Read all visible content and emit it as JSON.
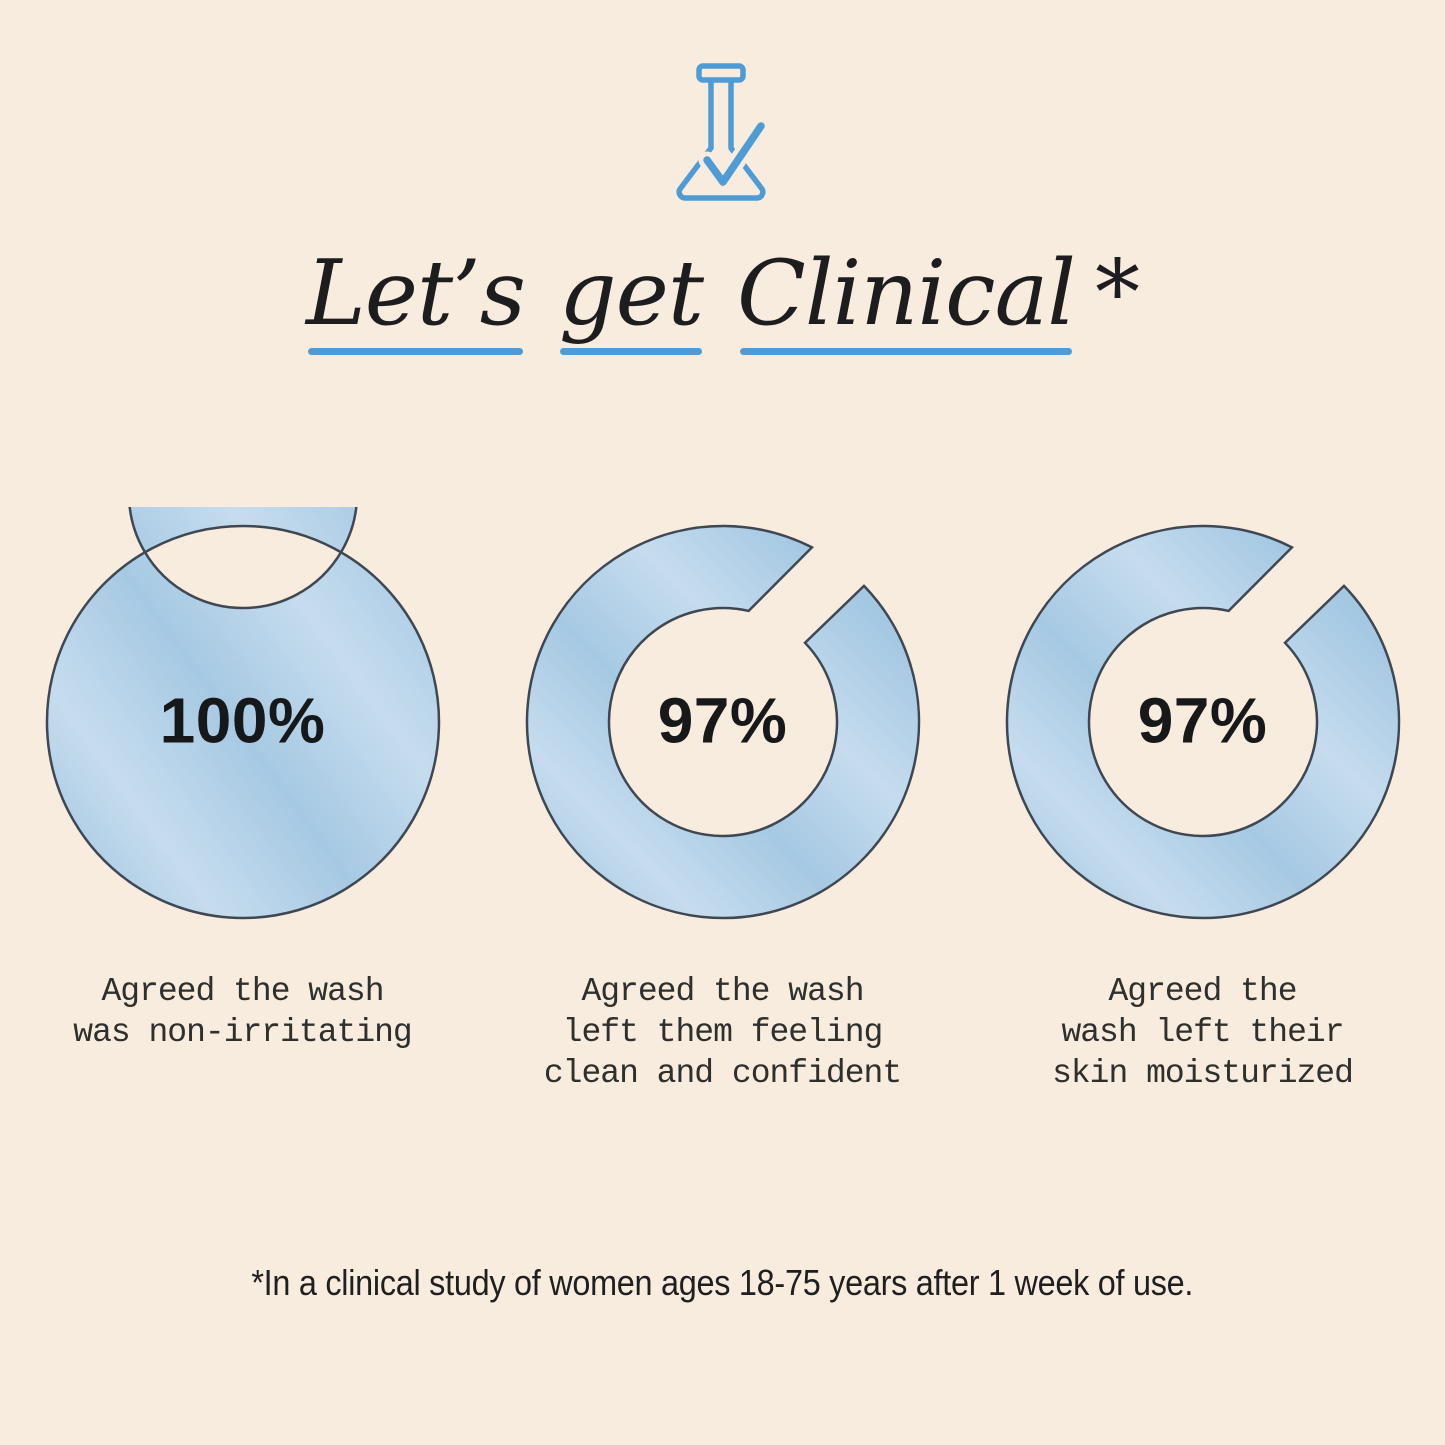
{
  "colors": {
    "bg": "#f8ecdf",
    "accent_blue": "#4f9bd5",
    "ring_fill": "#a6c9e3",
    "ring_light": "#c6dcee",
    "ring_dark": "#9ac1dd",
    "ring_outline": "#3e4752",
    "title": "#1d1d1f",
    "percent": "#17181a",
    "caption": "#2f2f2c",
    "footnote": "#1f1f1f"
  },
  "header": {
    "icon": "beaker-check-icon",
    "title_words": [
      {
        "text": "Let’s"
      },
      {
        "text": "get"
      },
      {
        "text": "Clinical"
      }
    ],
    "title_suffix": "*"
  },
  "main": {
    "charts": [
      {
        "value_label": "100%",
        "caption_lines": [
          "Agreed the wash",
          "was non-irritating"
        ],
        "ring": {
          "full": true
        }
      },
      {
        "value_label": "97%",
        "caption_lines": [
          "Agreed the wash",
          "left them feeling",
          "clean and confident"
        ],
        "ring": {
          "full": false,
          "start_deg": 46,
          "end_outer_deg": 387,
          "end_inner_deg": 373
        }
      },
      {
        "value_label": "97%",
        "caption_lines": [
          "Agreed the",
          "wash left their",
          "skin moisturized"
        ],
        "ring": {
          "full": false,
          "start_deg": 46,
          "end_outer_deg": 387,
          "end_inner_deg": 373
        }
      }
    ]
  },
  "footer": {
    "note": "*In a clinical study of women ages 18-75 years after 1 week of use."
  },
  "chart_data": [
    {
      "type": "pie",
      "subtype": "donut",
      "values": [
        100
      ],
      "unit": "%",
      "center_label": "100%",
      "caption": "Agreed the wash was non-irritating",
      "ring_color": "#a6c9e3",
      "outline_color": "#3e4752"
    },
    {
      "type": "pie",
      "subtype": "donut",
      "values": [
        97,
        3
      ],
      "unit": "%",
      "center_label": "97%",
      "caption": "Agreed the wash left them feeling clean and confident",
      "ring_color": "#a6c9e3",
      "outline_color": "#3e4752",
      "gap_position": "top-right"
    },
    {
      "type": "pie",
      "subtype": "donut",
      "values": [
        97,
        3
      ],
      "unit": "%",
      "center_label": "97%",
      "caption": "Agreed the wash left their skin moisturized",
      "ring_color": "#a6c9e3",
      "outline_color": "#3e4752",
      "gap_position": "top-right"
    }
  ]
}
